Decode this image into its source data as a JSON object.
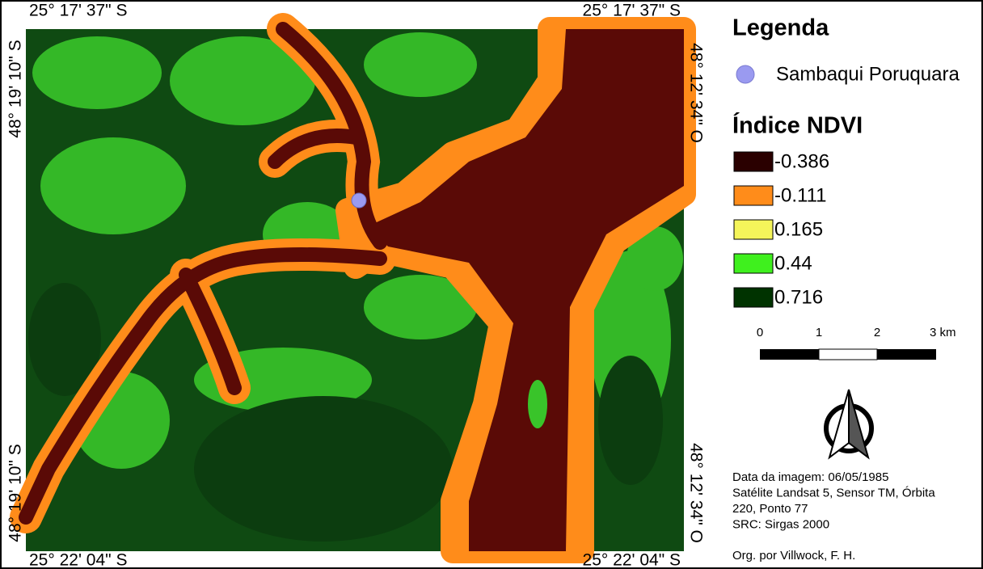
{
  "coordinates": {
    "top_left": "25° 17' 37\" S",
    "top_right": "25° 17' 37\" S",
    "bottom_left": "25° 22' 04\" S",
    "bottom_right": "25° 22' 04\" S",
    "left_top": "48° 19' 10\" S",
    "left_bottom": "48° 19' 10\" S",
    "right_top": "48° 12' 34\" O",
    "right_bottom": "48° 12' 34\" O"
  },
  "legend": {
    "title": "Legenda",
    "site": "Sambaqui Poruquara",
    "ndvi_title": "Índice NDVI",
    "classes": [
      {
        "label": "-0.386",
        "color": "#2a0000"
      },
      {
        "label": "-0.111",
        "color": "#ff8c1a"
      },
      {
        "label": "0.165",
        "color": "#f5f55a"
      },
      {
        "label": "0.44",
        "color": "#3ff01e"
      },
      {
        "label": "0.716",
        "color": "#003300"
      }
    ]
  },
  "scale_bar": {
    "labels": [
      "0",
      "1",
      "2",
      "3 km"
    ]
  },
  "info": {
    "lines": [
      "Data da imagem: 06/05/1985",
      "Satélite Landsat 5, Sensor TM, Órbita",
      "220, Ponto 77",
      "SRC: Sirgas 2000"
    ],
    "credit": "Org. por Villwock, F. H."
  }
}
